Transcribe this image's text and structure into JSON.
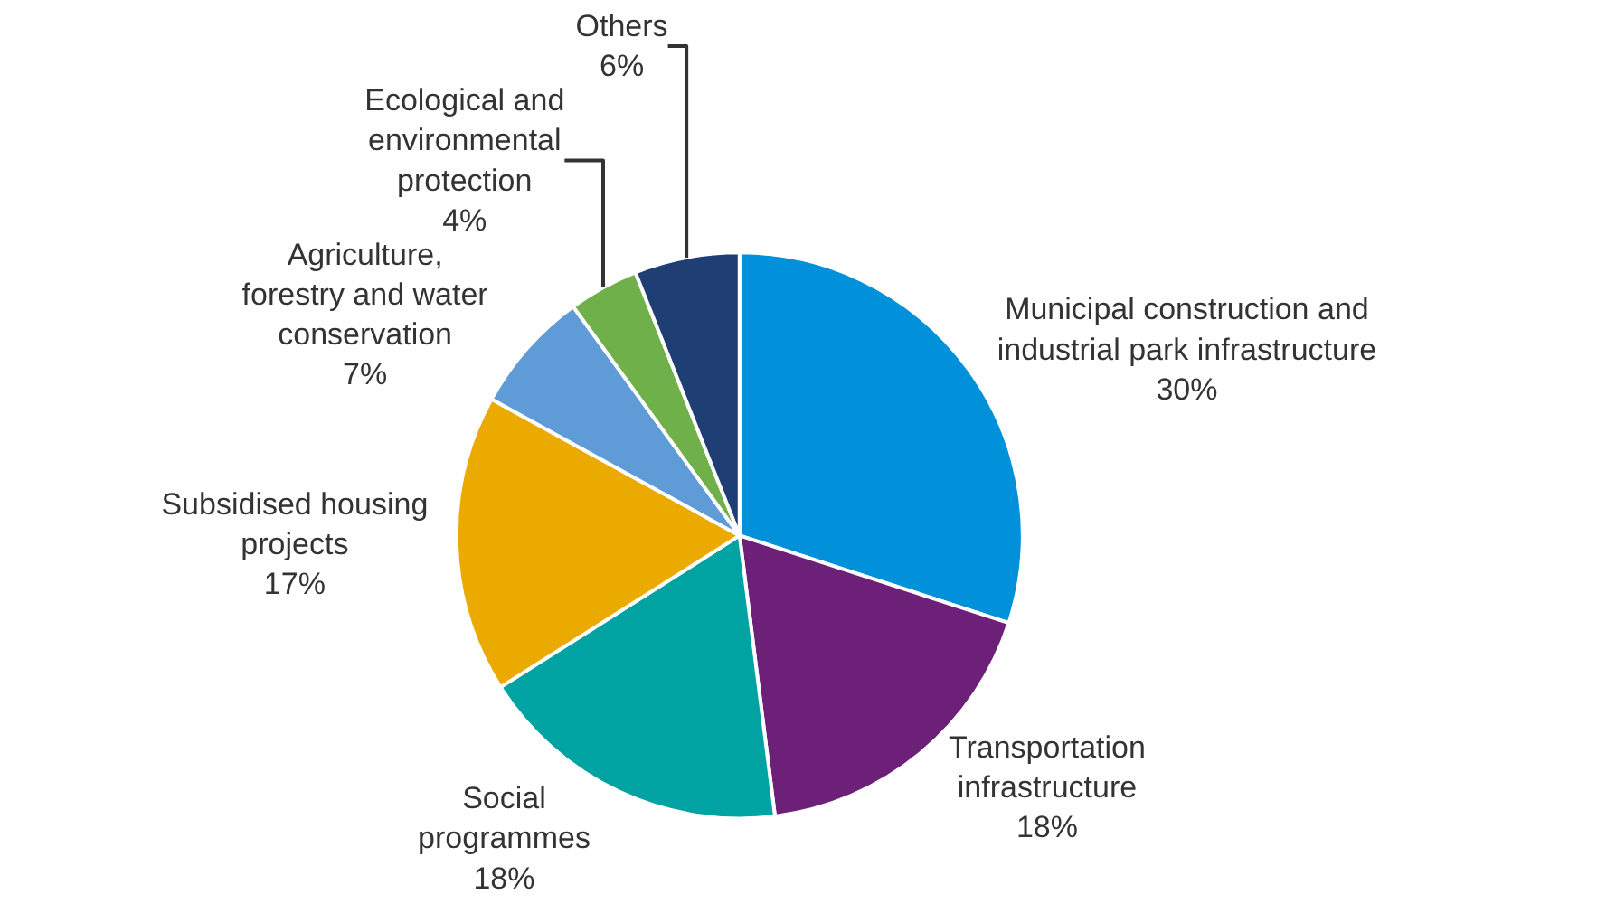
{
  "chart_data": {
    "type": "pie",
    "categories": [
      "Municipal construction and industrial park infrastructure",
      "Transportation infrastructure",
      "Social programmes",
      "Subsidised housing projects",
      "Agriculture, forestry and water conservation",
      "Ecological and environmental protection",
      "Others"
    ],
    "values": [
      30,
      18,
      18,
      17,
      7,
      4,
      6
    ],
    "value_labels": [
      "30%",
      "18%",
      "18%",
      "17%",
      "7%",
      "4%",
      "6%"
    ],
    "colors": [
      "#0091da",
      "#6d2077",
      "#00a3a1",
      "#eaaa00",
      "#5f9bd7",
      "#6fb04a",
      "#1f3f74"
    ],
    "legend": false
  }
}
